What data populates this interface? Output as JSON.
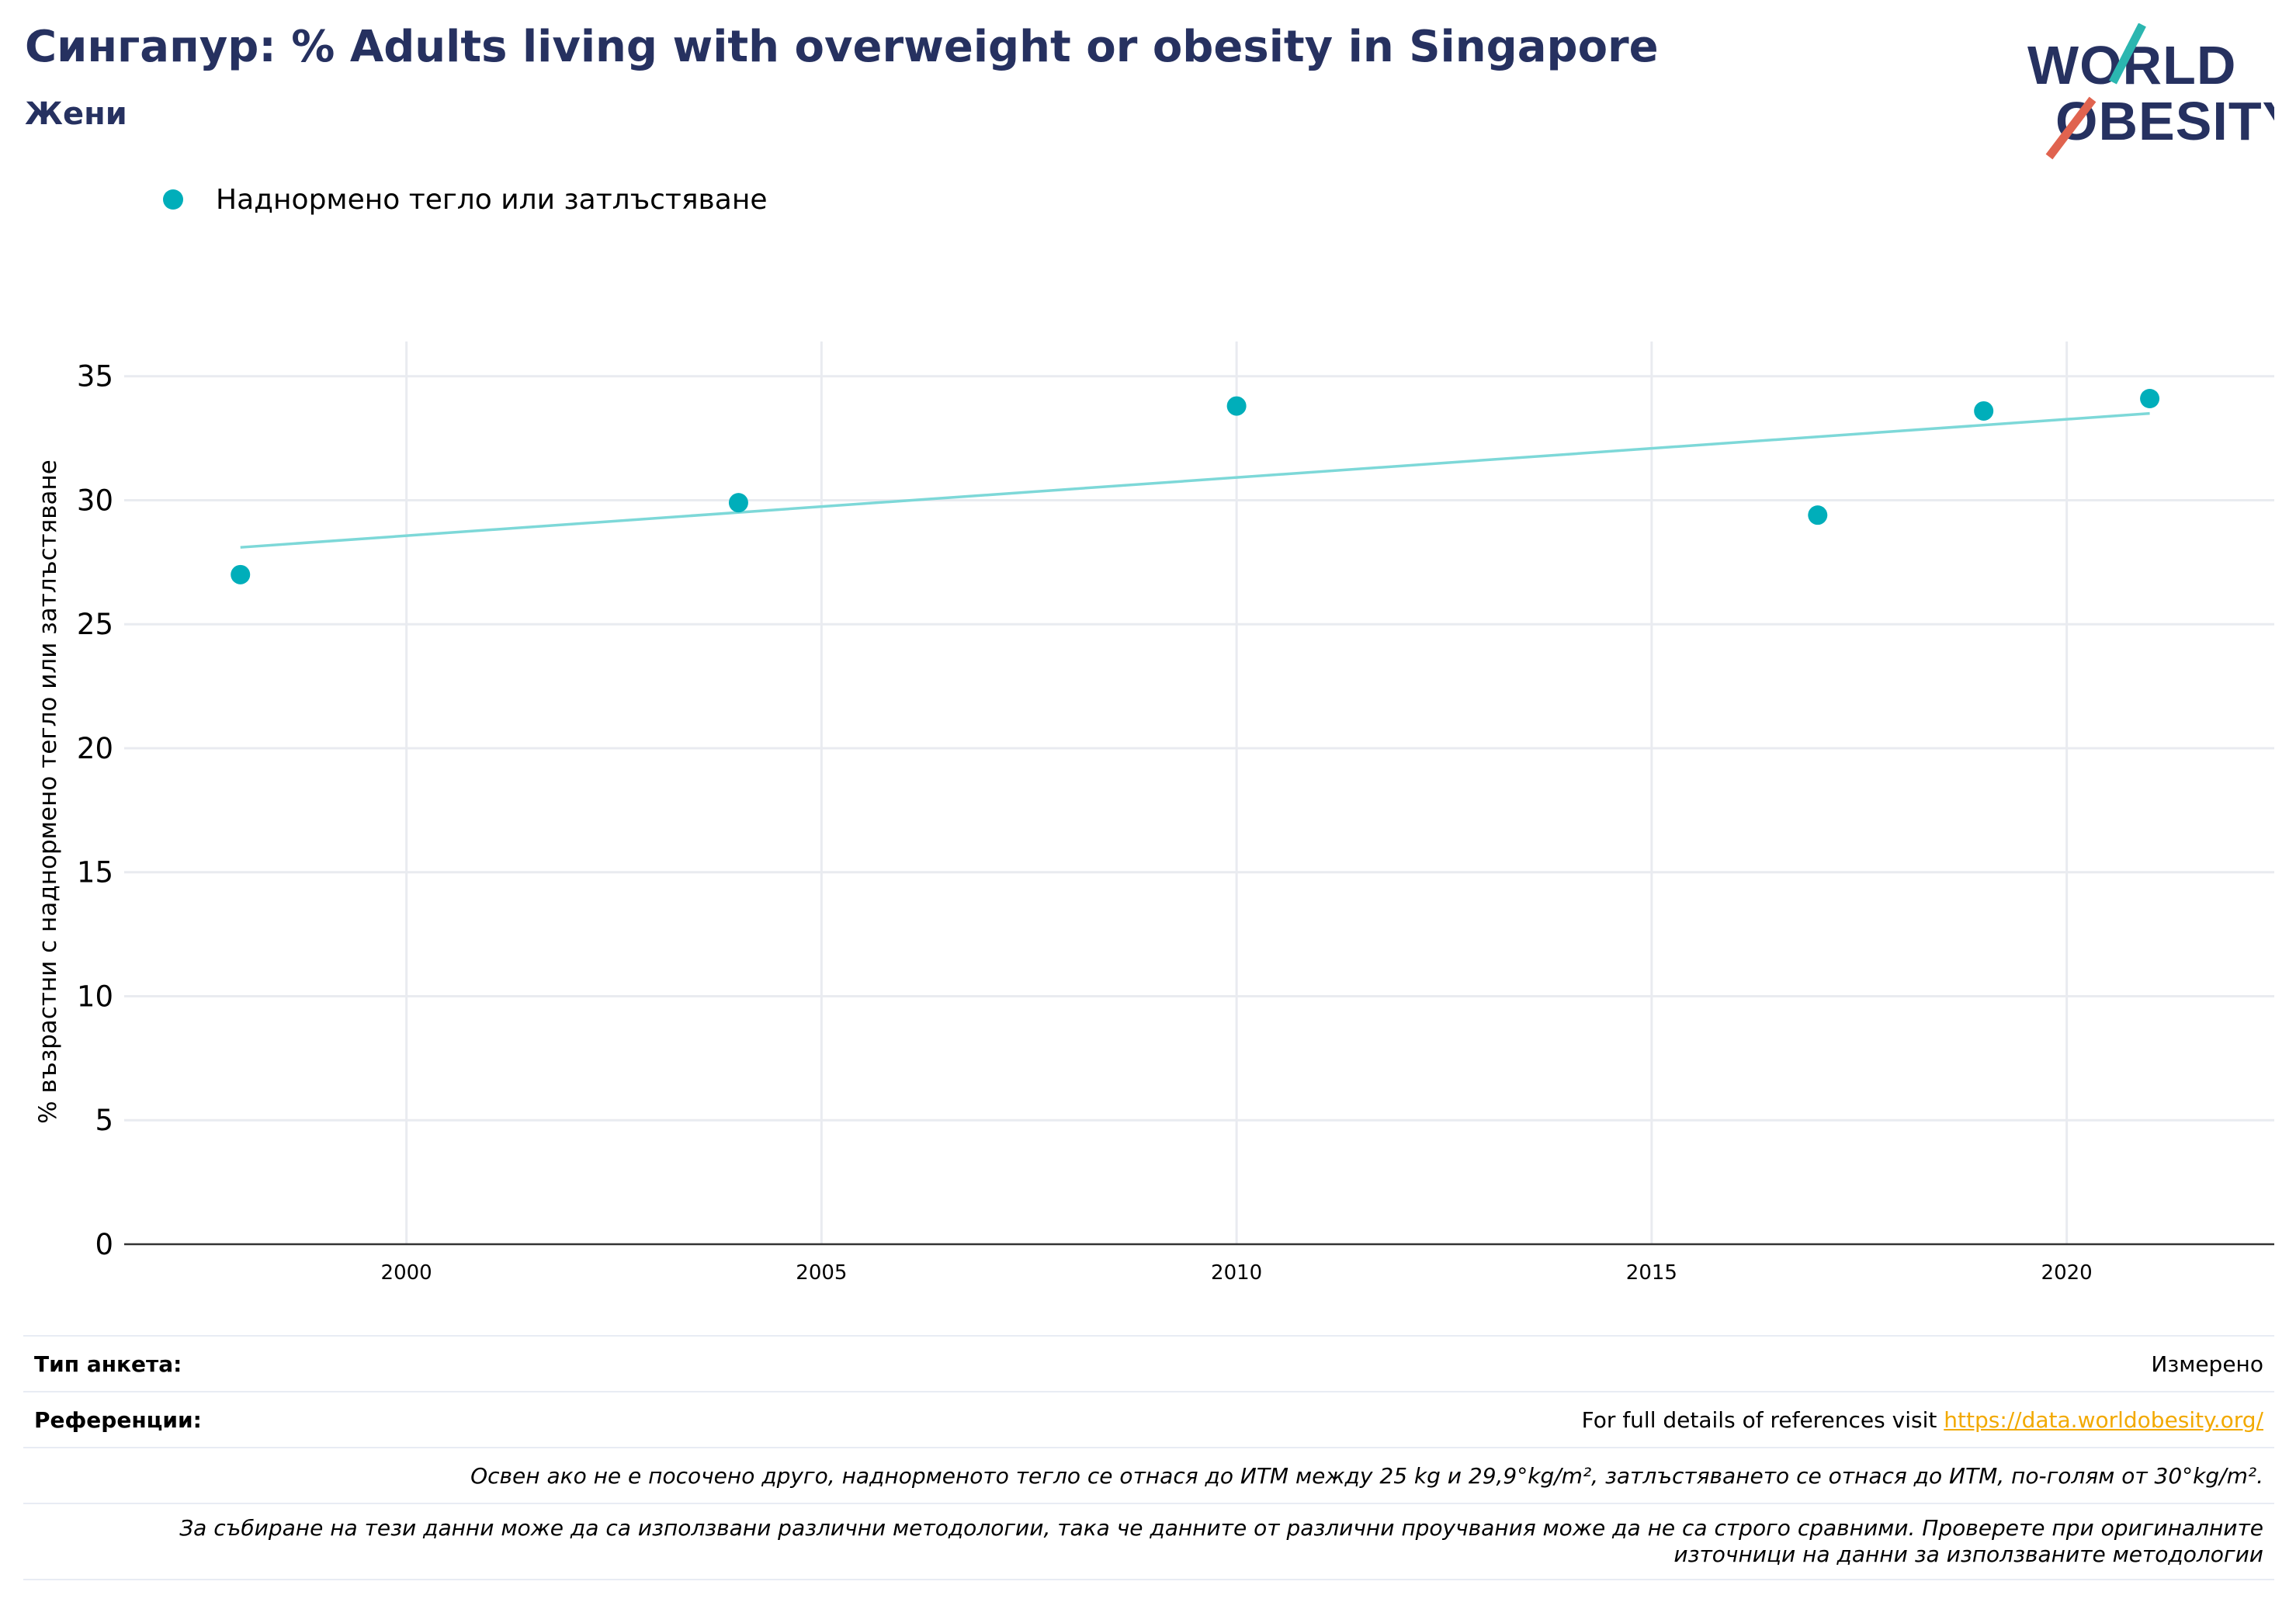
{
  "header": {
    "title": "Сингапур: % Adults living with overweight or obesity in Singapore",
    "subtitle": "Жени"
  },
  "logo": {
    "line1": "WORLD",
    "line2": "OBESITY"
  },
  "colors": {
    "title": "#263160",
    "series": "#00aeba",
    "trend": "#7dd8d8",
    "link": "#f2a900",
    "logo_teal": "#2bb6b0",
    "logo_red": "#e0634f"
  },
  "chart_data": {
    "type": "scatter",
    "title": "Сингапур: % Adults living with overweight or obesity in Singapore",
    "subtitle": "Жени",
    "ylabel": "% възрастни с наднормено тегло или затлъстяване",
    "xlabel": "",
    "legend_position": "top-left",
    "grid": true,
    "xlim": [
      1996.6,
      2022.5
    ],
    "ylim": [
      0,
      36.4
    ],
    "xticks": [
      2000,
      2005,
      2010,
      2015,
      2020
    ],
    "yticks": [
      0,
      5,
      10,
      15,
      20,
      25,
      30,
      35
    ],
    "series": [
      {
        "name": "Наднормено тегло или затлъстяване",
        "points": [
          {
            "x": 1998,
            "y": 27.0
          },
          {
            "x": 2004,
            "y": 29.9
          },
          {
            "x": 2010,
            "y": 33.8
          },
          {
            "x": 2017,
            "y": 29.4
          },
          {
            "x": 2019,
            "y": 33.6
          },
          {
            "x": 2021,
            "y": 34.1
          }
        ]
      }
    ],
    "trendline": {
      "x": [
        1998,
        2021
      ],
      "y": [
        28.1,
        33.5
      ]
    }
  },
  "footer": {
    "survey_label": "Тип анкета:",
    "survey_value": "Измерено",
    "refs_label": "Референции:",
    "refs_text": "For full details of references visit ",
    "refs_link": "https://data.worldobesity.org/",
    "note1": "Освен ако не е посочено друго, наднорменото тегло се отнася до ИТМ между 25 kg и 29,9°kg/m², затлъстяването се отнася до ИТМ, по-голям от 30°kg/m².",
    "note2": "За събиране на тези данни може да са използвани различни методологии, така че данните от различни проучвания може да не са строго сравними. Проверете при оригиналните източници на данни за използваните методологии"
  }
}
